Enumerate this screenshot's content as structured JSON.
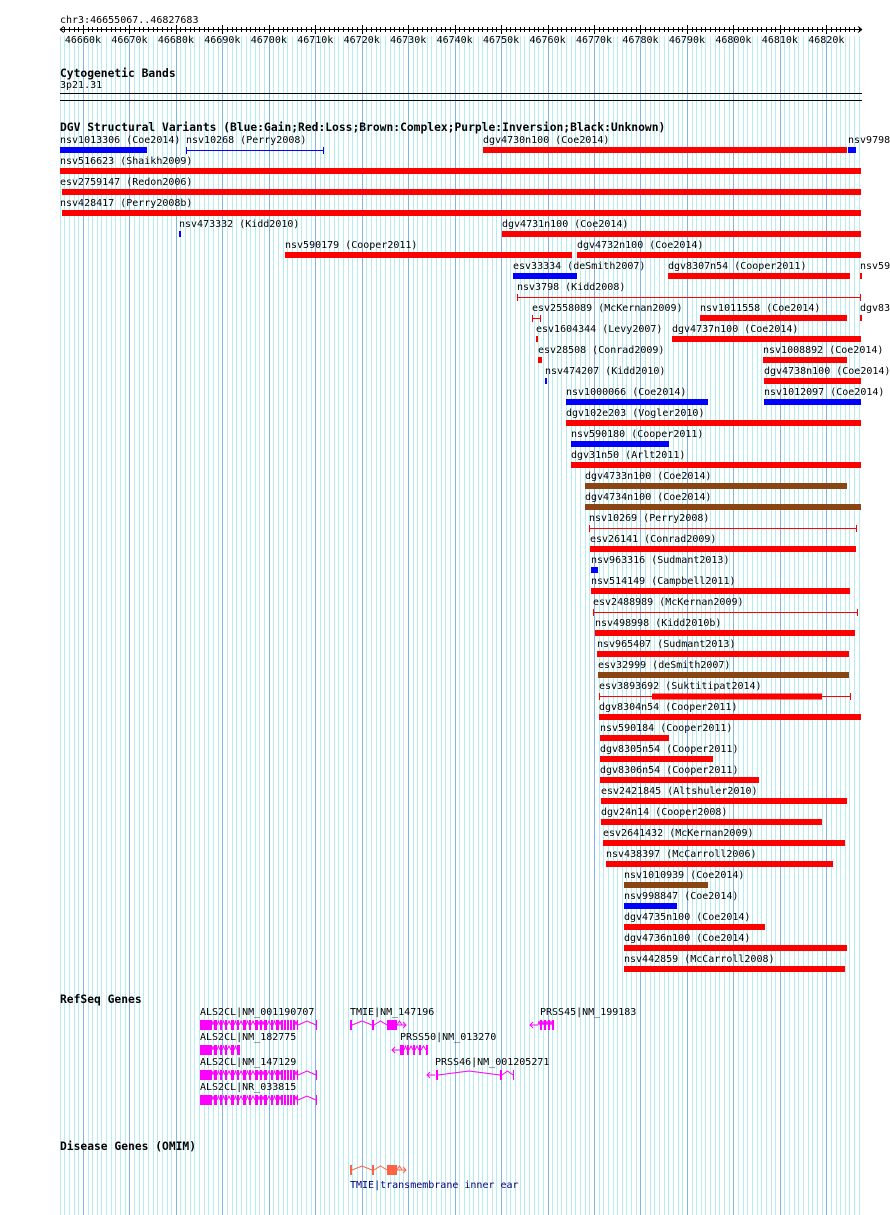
{
  "ruler": {
    "location": "chr3:46655067..46827683",
    "ticks": [
      "46660k",
      "46670k",
      "46680k",
      "46690k",
      "46700k",
      "46710k",
      "46720k",
      "46730k",
      "46740k",
      "46750k",
      "46760k",
      "46770k",
      "46780k",
      "46790k",
      "46800k",
      "46810k",
      "46820k"
    ]
  },
  "cytoband": {
    "title": "Cytogenetic Bands",
    "band": "3p21.31"
  },
  "dgv": {
    "title": "DGV Structural Variants (Blue:Gain;Red:Loss;Brown:Complex;Purple:Inversion;Black:Unknown)",
    "colors": {
      "gain": "#0000ff",
      "loss": "#ff0000",
      "complex": "#8b4513"
    },
    "variants": [
      {
        "label": "nsv1013306 (Coe2014)",
        "type": "gain"
      },
      {
        "label": "nsv10268 (Perry2008)",
        "type": "gain"
      },
      {
        "label": "dgv4730n100 (Coe2014)",
        "type": "loss"
      },
      {
        "label": "nsv9798",
        "type": "gain"
      },
      {
        "label": "nsv516623 (Shaikh2009)",
        "type": "loss"
      },
      {
        "label": "esv2759147 (Redon2006)",
        "type": "loss"
      },
      {
        "label": "nsv428417 (Perry2008b)",
        "type": "loss"
      },
      {
        "label": "nsv473332 (Kidd2010)",
        "type": "gain"
      },
      {
        "label": "dgv4731n100 (Coe2014)",
        "type": "loss"
      },
      {
        "label": "nsv590179 (Cooper2011)",
        "type": "loss"
      },
      {
        "label": "dgv4732n100 (Coe2014)",
        "type": "loss"
      },
      {
        "label": "esv33334 (deSmith2007)",
        "type": "gain"
      },
      {
        "label": "dgv8307n54 (Cooper2011)",
        "type": "loss"
      },
      {
        "label": "nsv59",
        "type": "loss"
      },
      {
        "label": "nsv3798 (Kidd2008)",
        "type": "loss"
      },
      {
        "label": "esv2558089 (McKernan2009)",
        "type": "loss"
      },
      {
        "label": "nsv1011558 (Coe2014)",
        "type": "loss"
      },
      {
        "label": "dgv83",
        "type": "loss"
      },
      {
        "label": "esv1604344 (Levy2007)",
        "type": "loss"
      },
      {
        "label": "dgv4737n100 (Coe2014)",
        "type": "loss"
      },
      {
        "label": "esv28508 (Conrad2009)",
        "type": "loss"
      },
      {
        "label": "nsv1008892 (Coe2014)",
        "type": "loss"
      },
      {
        "label": "nsv474207 (Kidd2010)",
        "type": "gain"
      },
      {
        "label": "dgv4738n100 (Coe2014)",
        "type": "loss"
      },
      {
        "label": "nsv1000066 (Coe2014)",
        "type": "gain"
      },
      {
        "label": "nsv1012097 (Coe2014)",
        "type": "gain"
      },
      {
        "label": "dgv102e203 (Vogler2010)",
        "type": "loss"
      },
      {
        "label": "nsv590180 (Cooper2011)",
        "type": "gain"
      },
      {
        "label": "dgv31n50 (Arlt2011)",
        "type": "loss"
      },
      {
        "label": "dgv4733n100 (Coe2014)",
        "type": "complex"
      },
      {
        "label": "dgv4734n100 (Coe2014)",
        "type": "complex"
      },
      {
        "label": "nsv10269 (Perry2008)",
        "type": "loss"
      },
      {
        "label": "esv26141 (Conrad2009)",
        "type": "loss"
      },
      {
        "label": "nsv963316 (Sudmant2013)",
        "type": "gain"
      },
      {
        "label": "nsv514149 (Campbell2011)",
        "type": "loss"
      },
      {
        "label": "esv2488989 (McKernan2009)",
        "type": "loss"
      },
      {
        "label": "nsv498998 (Kidd2010b)",
        "type": "loss"
      },
      {
        "label": "nsv965407 (Sudmant2013)",
        "type": "loss"
      },
      {
        "label": "esv32999 (deSmith2007)",
        "type": "complex"
      },
      {
        "label": "esv3893692 (Suktitipat2014)",
        "type": "loss"
      },
      {
        "label": "dgv8304n54 (Cooper2011)",
        "type": "loss"
      },
      {
        "label": "nsv590184 (Cooper2011)",
        "type": "loss"
      },
      {
        "label": "dgv8305n54 (Cooper2011)",
        "type": "loss"
      },
      {
        "label": "dgv8306n54 (Cooper2011)",
        "type": "loss"
      },
      {
        "label": "esv2421845 (Altshuler2010)",
        "type": "loss"
      },
      {
        "label": "dgv24n14 (Cooper2008)",
        "type": "loss"
      },
      {
        "label": "esv2641432 (McKernan2009)",
        "type": "loss"
      },
      {
        "label": "nsv438397 (McCarroll2006)",
        "type": "loss"
      },
      {
        "label": "nsv1010939 (Coe2014)",
        "type": "complex"
      },
      {
        "label": "nsv998847 (Coe2014)",
        "type": "gain"
      },
      {
        "label": "dgv4735n100 (Coe2014)",
        "type": "loss"
      },
      {
        "label": "dgv4736n100 (Coe2014)",
        "type": "loss"
      },
      {
        "label": "nsv442859 (McCarroll2008)",
        "type": "loss"
      }
    ]
  },
  "refseq": {
    "title": "RefSeq Genes",
    "color": "#ff00ff",
    "genes": [
      {
        "label": "ALS2CL|NM_001190707"
      },
      {
        "label": "TMIE|NM_147196"
      },
      {
        "label": "PRSS45|NM_199183"
      },
      {
        "label": "ALS2CL|NM_182775"
      },
      {
        "label": "PRSS50|NM_013270"
      },
      {
        "label": "ALS2CL|NM_147129"
      },
      {
        "label": "PRSS46|NM_001205271"
      },
      {
        "label": "ALS2CL|NR_033815"
      }
    ]
  },
  "omim": {
    "title": "Disease Genes (OMIM)",
    "color": "#ff6347",
    "genes": [
      {
        "label": "TMIE|transmembrane inner ear"
      }
    ]
  }
}
